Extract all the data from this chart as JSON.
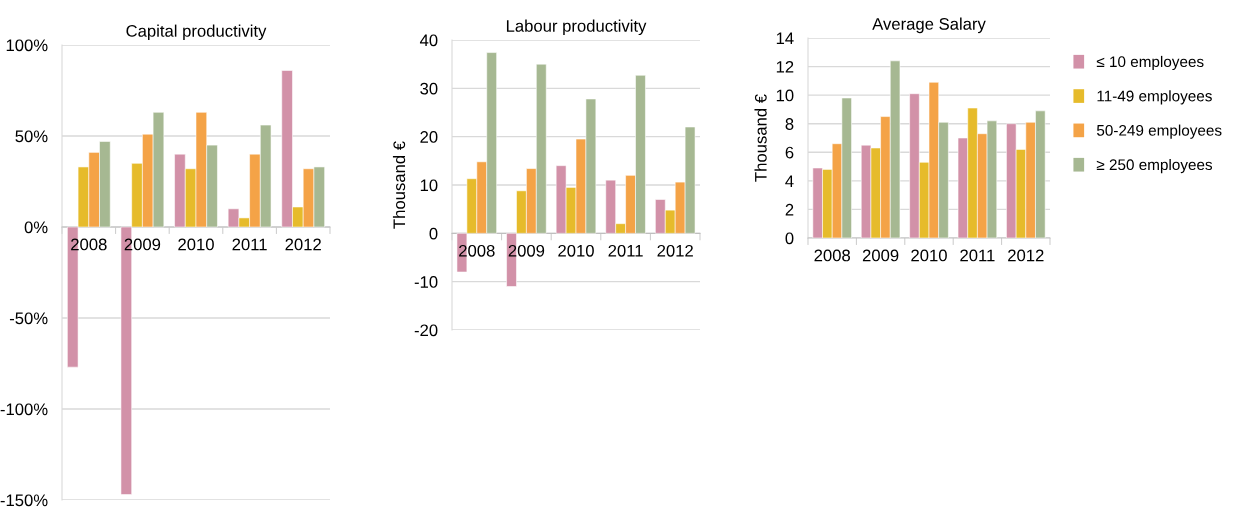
{
  "chart_data": [
    {
      "type": "bar",
      "title": "Capital productivity",
      "categories": [
        "2008",
        "2009",
        "2010",
        "2011",
        "2012"
      ],
      "series": [
        {
          "color": "#d291a8",
          "values": [
            -77,
            -147,
            40,
            10,
            86
          ]
        },
        {
          "color": "#e6bb2b",
          "values": [
            33,
            35,
            32,
            5,
            11
          ]
        },
        {
          "color": "#f4a347",
          "values": [
            41,
            51,
            63,
            40,
            32
          ]
        },
        {
          "color": "#a6b892",
          "values": [
            47,
            63,
            45,
            56,
            33
          ]
        }
      ],
      "ylim": [
        -150,
        100
      ],
      "yticks": [
        {
          "value": -150,
          "label": "-150%"
        },
        {
          "value": -100,
          "label": "-100%"
        },
        {
          "value": -50,
          "label": "-50%"
        },
        {
          "value": 0,
          "label": "0%"
        },
        {
          "value": 50,
          "label": "50%"
        },
        {
          "value": 100,
          "label": "100%"
        }
      ],
      "grid": "y"
    },
    {
      "type": "bar",
      "title": "Labour productivity",
      "ylabel": "Thousand €",
      "categories": [
        "2008",
        "2009",
        "2010",
        "2011",
        "2012"
      ],
      "series": [
        {
          "color": "#d291a8",
          "values": [
            -8,
            -11,
            14,
            11,
            7
          ]
        },
        {
          "color": "#e6bb2b",
          "values": [
            11.3,
            8.8,
            9.5,
            2,
            4.8
          ]
        },
        {
          "color": "#f4a347",
          "values": [
            14.8,
            13.4,
            19.5,
            12,
            10.6
          ]
        },
        {
          "color": "#a6b892",
          "values": [
            37.4,
            35,
            27.8,
            32.7,
            22
          ]
        }
      ],
      "ylim": [
        -20,
        40
      ],
      "yticks": [
        -20,
        -10,
        0,
        10,
        20,
        30,
        40
      ],
      "grid": "y"
    },
    {
      "type": "bar",
      "title": "Average Salary",
      "ylabel": "Thousand €",
      "categories": [
        "2008",
        "2009",
        "2010",
        "2011",
        "2012"
      ],
      "series": [
        {
          "name": "≤ 10 employees",
          "color": "#d291a8",
          "values": [
            4.9,
            6.5,
            10.1,
            7.0,
            8.0
          ]
        },
        {
          "name": "11-49 employees",
          "color": "#e6bb2b",
          "values": [
            4.8,
            6.3,
            5.3,
            9.1,
            6.2
          ]
        },
        {
          "name": "50-249 employees",
          "color": "#f4a347",
          "values": [
            6.6,
            8.5,
            10.9,
            7.3,
            8.1
          ]
        },
        {
          "name": "≥ 250 employees",
          "color": "#a6b892",
          "values": [
            9.8,
            12.4,
            8.1,
            8.2,
            8.9
          ]
        }
      ],
      "ylim": [
        0,
        14
      ],
      "yticks": [
        0,
        2,
        4,
        6,
        8,
        10,
        12,
        14
      ],
      "grid": "y",
      "legend": "right"
    }
  ]
}
